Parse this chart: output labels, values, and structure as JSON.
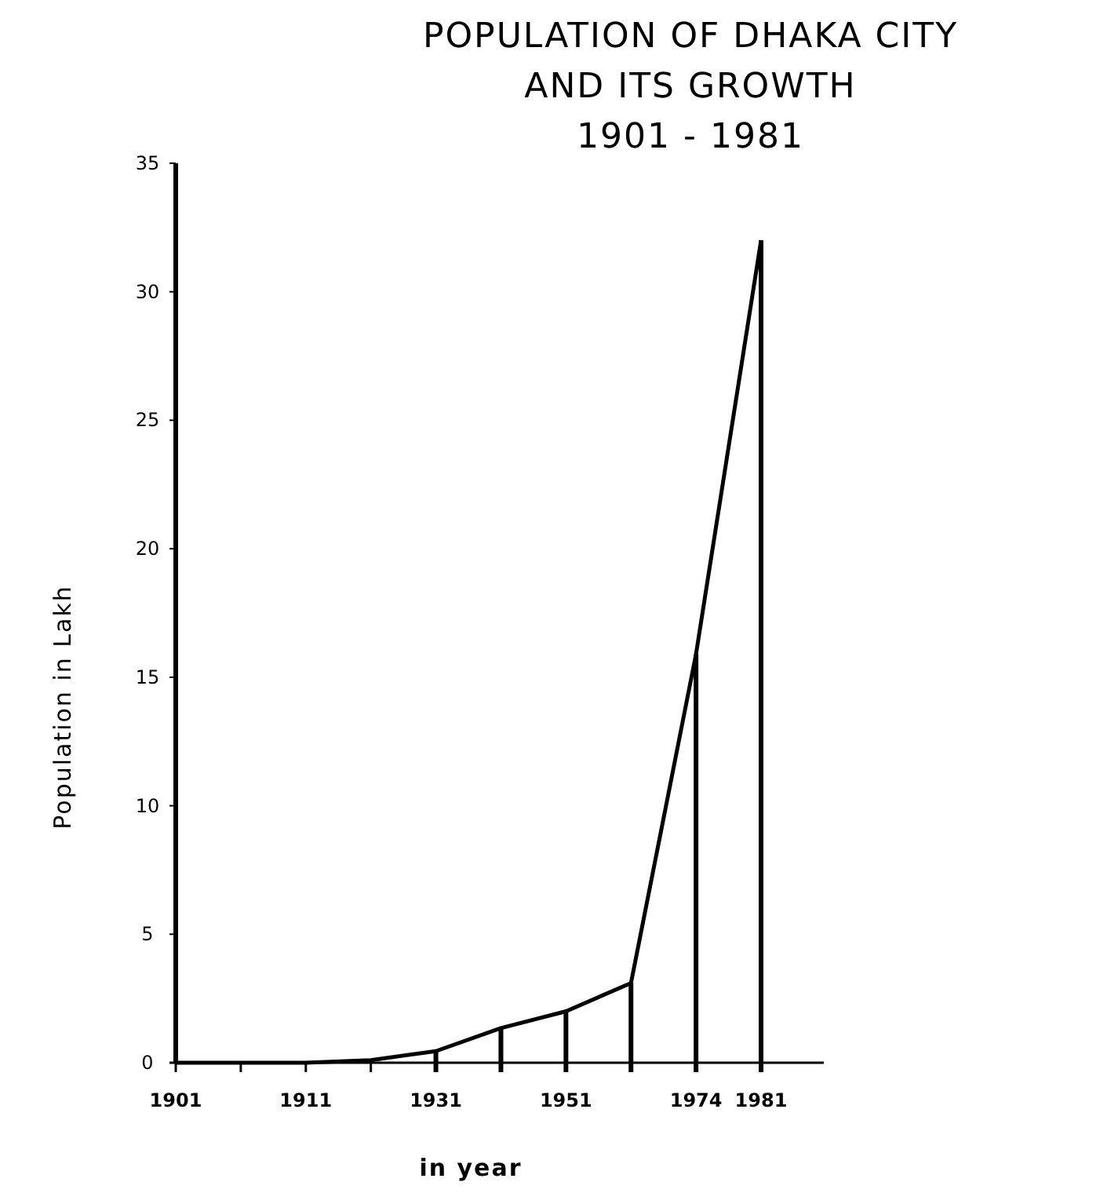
{
  "chart_data": {
    "type": "line",
    "title": "POPULATION OF DHAKA CITY\nAND ITS GROWTH",
    "subtitle": "1901 - 1981",
    "xlabel": "in year",
    "ylabel": "Population in Lakh",
    "categories": [
      "1901",
      null,
      "1911",
      null,
      "1931",
      null,
      "1951",
      null,
      "1974",
      "1981"
    ],
    "series": [
      {
        "color": "#000000",
        "values": [
          0,
          0,
          0,
          0.1,
          0.45,
          1.35,
          2.0,
          3.1,
          15.9,
          32
        ]
      }
    ],
    "ylim": [
      0,
      35
    ],
    "yticks": [
      0,
      5,
      10,
      15,
      20,
      25,
      30,
      35
    ],
    "marker": "none",
    "line_style": "solid"
  }
}
